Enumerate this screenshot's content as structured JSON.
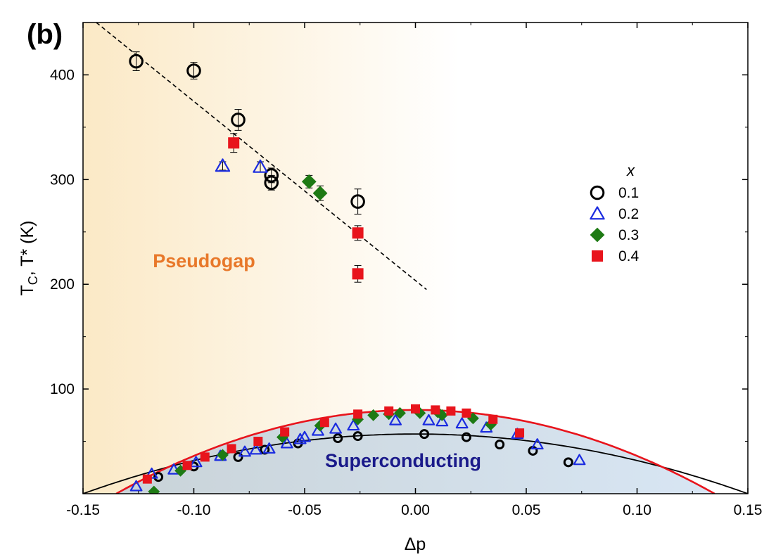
{
  "chart_data": {
    "type": "scatter",
    "panel_label": "(b)",
    "xlabel": "Δp",
    "ylabel": "T",
    "ylabel_sub": "C",
    "ylabel_rest": ", T* (K)",
    "xlim": [
      -0.15,
      0.15
    ],
    "ylim": [
      0,
      450
    ],
    "xticks": [
      -0.15,
      -0.1,
      -0.05,
      0.0,
      0.05,
      0.1,
      0.15
    ],
    "xtick_labels": [
      "-0.15",
      "-0.10",
      "-0.05",
      "0.00",
      "0.05",
      "0.10",
      "0.15"
    ],
    "yticks": [
      100,
      200,
      300,
      400
    ],
    "ytick_labels": [
      "100",
      "200",
      "300",
      "400"
    ],
    "region_labels": {
      "pseudogap": "Pseudogap",
      "superconducting": "Superconducting"
    },
    "colors": {
      "pseudogap_label": "#e8782a",
      "superconducting_label": "#1a1a8a",
      "pseudogap_fill": "#fbe9c6",
      "superconducting_fill": "#d8e6f4",
      "red_dome": "#e8141c",
      "black_dome": "#000000"
    },
    "legend": {
      "title": "x",
      "placement": "right",
      "entries": [
        {
          "label": "0.1",
          "marker": "circle-open",
          "color": "#000000"
        },
        {
          "label": "0.2",
          "marker": "triangle-open",
          "color": "#1a2be0"
        },
        {
          "label": "0.3",
          "marker": "diamond-filled",
          "color": "#1e7a14"
        },
        {
          "label": "0.4",
          "marker": "square-filled",
          "color": "#e8141c"
        }
      ]
    },
    "pseudogap_line": {
      "style": "dashed",
      "x": [
        -0.144,
        0.005
      ],
      "y": [
        450,
        195
      ]
    },
    "domes": [
      {
        "name": "red",
        "peak_x": 0.0,
        "peak_y": 80,
        "zero_offset": 0.135
      },
      {
        "name": "black",
        "peak_x": 0.0,
        "peak_y": 57,
        "zero_offset": 0.15
      }
    ],
    "series": [
      {
        "name": "0.1",
        "pseudogap_points": [
          {
            "x": -0.126,
            "y": 413,
            "err": 9
          },
          {
            "x": -0.1,
            "y": 404,
            "err": 8
          },
          {
            "x": -0.08,
            "y": 357,
            "err": 10
          },
          {
            "x": -0.065,
            "y": 304,
            "err": 7
          },
          {
            "x": -0.065,
            "y": 297,
            "err": 7
          },
          {
            "x": -0.026,
            "y": 279,
            "err": 12
          }
        ],
        "tc_points": [
          {
            "x": -0.116,
            "y": 16
          },
          {
            "x": -0.1,
            "y": 26
          },
          {
            "x": -0.08,
            "y": 35
          },
          {
            "x": -0.068,
            "y": 42
          },
          {
            "x": -0.053,
            "y": 48
          },
          {
            "x": -0.035,
            "y": 53
          },
          {
            "x": -0.026,
            "y": 55
          },
          {
            "x": 0.004,
            "y": 57
          },
          {
            "x": 0.023,
            "y": 54
          },
          {
            "x": 0.038,
            "y": 47
          },
          {
            "x": 0.053,
            "y": 41
          },
          {
            "x": 0.069,
            "y": 30
          }
        ]
      },
      {
        "name": "0.2",
        "pseudogap_points": [
          {
            "x": -0.087,
            "y": 313,
            "err": 4
          },
          {
            "x": -0.07,
            "y": 312,
            "err": 5
          }
        ],
        "tc_points": [
          {
            "x": -0.126,
            "y": 7
          },
          {
            "x": -0.119,
            "y": 19
          },
          {
            "x": -0.109,
            "y": 23
          },
          {
            "x": -0.099,
            "y": 30
          },
          {
            "x": -0.088,
            "y": 36
          },
          {
            "x": -0.077,
            "y": 40
          },
          {
            "x": -0.072,
            "y": 42
          },
          {
            "x": -0.066,
            "y": 43
          },
          {
            "x": -0.058,
            "y": 48
          },
          {
            "x": -0.052,
            "y": 52
          },
          {
            "x": -0.05,
            "y": 54
          },
          {
            "x": -0.044,
            "y": 60
          },
          {
            "x": -0.036,
            "y": 62
          },
          {
            "x": -0.028,
            "y": 65
          },
          {
            "x": -0.009,
            "y": 70
          },
          {
            "x": 0.006,
            "y": 70
          },
          {
            "x": 0.012,
            "y": 69
          },
          {
            "x": 0.021,
            "y": 67
          },
          {
            "x": 0.032,
            "y": 63
          },
          {
            "x": 0.046,
            "y": 57
          },
          {
            "x": 0.055,
            "y": 47
          },
          {
            "x": 0.074,
            "y": 32
          }
        ]
      },
      {
        "name": "0.3",
        "pseudogap_points": [
          {
            "x": -0.048,
            "y": 298,
            "err": 6
          },
          {
            "x": -0.043,
            "y": 287,
            "err": 7
          }
        ],
        "tc_points": [
          {
            "x": -0.118,
            "y": 2
          },
          {
            "x": -0.106,
            "y": 22
          },
          {
            "x": -0.087,
            "y": 37
          },
          {
            "x": -0.06,
            "y": 54
          },
          {
            "x": -0.043,
            "y": 65
          },
          {
            "x": -0.026,
            "y": 71
          },
          {
            "x": -0.019,
            "y": 75
          },
          {
            "x": -0.012,
            "y": 76
          },
          {
            "x": -0.007,
            "y": 77
          },
          {
            "x": 0.002,
            "y": 77
          },
          {
            "x": 0.01,
            "y": 78
          },
          {
            "x": 0.012,
            "y": 75
          },
          {
            "x": 0.026,
            "y": 72
          },
          {
            "x": 0.034,
            "y": 66
          }
        ]
      },
      {
        "name": "0.4",
        "pseudogap_points": [
          {
            "x": -0.082,
            "y": 335,
            "err": 9
          },
          {
            "x": -0.026,
            "y": 249,
            "err": 7
          },
          {
            "x": -0.026,
            "y": 210,
            "err": 8
          }
        ],
        "tc_points": [
          {
            "x": -0.121,
            "y": 14
          },
          {
            "x": -0.103,
            "y": 27
          },
          {
            "x": -0.095,
            "y": 35
          },
          {
            "x": -0.083,
            "y": 43
          },
          {
            "x": -0.071,
            "y": 50
          },
          {
            "x": -0.059,
            "y": 59
          },
          {
            "x": -0.041,
            "y": 68
          },
          {
            "x": -0.026,
            "y": 76
          },
          {
            "x": -0.012,
            "y": 79
          },
          {
            "x": 0.0,
            "y": 81
          },
          {
            "x": 0.009,
            "y": 80
          },
          {
            "x": 0.016,
            "y": 79
          },
          {
            "x": 0.023,
            "y": 77
          },
          {
            "x": 0.035,
            "y": 71
          },
          {
            "x": 0.047,
            "y": 58
          }
        ]
      }
    ]
  }
}
